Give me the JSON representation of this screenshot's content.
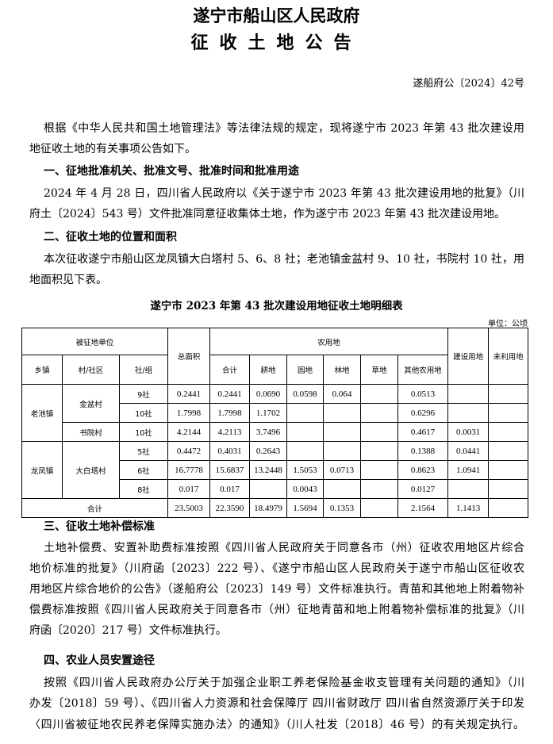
{
  "header": {
    "title1": "遂宁市船山区人民政府",
    "title2": "征收土地公告",
    "doc_no": "遂船府公〔2024〕42号"
  },
  "intro": [
    "根据《中华人民共和国土地管理法》等法律法规的规定，现将遂宁市 2023 年第 43 批次建设用",
    "地征收土地的有关事项公告如下。"
  ],
  "s1": {
    "heading": "一、征地批准机关、批准文号、批准时间和批准用途",
    "lines": [
      "2024 年 4 月 28 日，四川省人民政府以《关于遂宁市 2023 年第 43 批次建设用地的批复》（川",
      "府土〔2024〕543 号）文件批准同意征收集体土地，作为遂宁市 2023 年第 43 批次建设用地。"
    ]
  },
  "s2": {
    "heading": "二、征收土地的位置和面积",
    "lines": [
      "本次征收遂宁市船山区龙凤镇大白塔村 5、6、8 社；老池镇金盆村 9、10 社，书院村 10 社，用",
      "地面积见下表。"
    ]
  },
  "table": {
    "title": "遂宁市 2023 年第 43 批次建设用地征收土地明细表",
    "unit": "单位：公顷",
    "headers": {
      "unit_group": "被征地单位",
      "town": "乡镇",
      "village": "村/社区",
      "group": "社/组",
      "total": "总面积",
      "agri": "农用地",
      "agri_total": "合计",
      "arable": "耕地",
      "garden": "园地",
      "forest": "林地",
      "grass": "草地",
      "other_agri": "其他农用地",
      "construction": "建设用地",
      "unused": "未利用地"
    },
    "towns": [
      "老池镇",
      "龙凤镇"
    ],
    "villages": [
      "金盆村",
      "书院村",
      "大白塔村"
    ],
    "rows": [
      [
        "9社",
        "0.2441",
        "0.2441",
        "0.0690",
        "0.0598",
        "0.064",
        "",
        "0.0513",
        "",
        ""
      ],
      [
        "10社",
        "1.7998",
        "1.7998",
        "1.1702",
        "",
        "",
        "",
        "0.6296",
        "",
        ""
      ],
      [
        "10社",
        "4.2144",
        "4.2113",
        "3.7496",
        "",
        "",
        "",
        "0.4617",
        "0.0031",
        ""
      ],
      [
        "5社",
        "0.4472",
        "0.4031",
        "0.2643",
        "",
        "",
        "",
        "0.1388",
        "0.0441",
        ""
      ],
      [
        "6社",
        "16.7778",
        "15.6837",
        "13.2448",
        "1.5053",
        "0.0713",
        "",
        "0.8623",
        "1.0941",
        ""
      ],
      [
        "8社",
        "0.017",
        "0.017",
        "",
        "0.0043",
        "",
        "",
        "0.0127",
        "",
        ""
      ]
    ],
    "total": {
      "label": "合计",
      "values": [
        "23.5003",
        "22.3590",
        "18.4979",
        "1.5694",
        "0.1353",
        "",
        "2.1564",
        "1.1413",
        ""
      ]
    }
  },
  "s3": {
    "heading": "三、征收土地补偿标准",
    "lines": [
      "土地补偿费、安置补助费标准按照《四川省人民政府关于同意各市（州）征收农用地区片综合",
      "地价标准的批复》（川府函〔2023〕222 号）、《遂宁市船山区人民政府关于遂宁市船山区征收农",
      "用地区片综合地价的公告》（遂船府公〔2023〕149 号）文件标准执行。青苗和其他地上附着物补",
      "偿费标准按照《四川省人民政府关于同意各市（州）征地青苗和地上附着物补偿标准的批复》（川",
      "府函〔2020〕217 号）文件标准执行。"
    ]
  },
  "s4": {
    "heading": "四、农业人员安置途径",
    "lines": [
      "按照《四川省人民政府办公厅关于加强企业职工养老保险基金收支管理有关问题的通知》（川",
      "办发〔2018〕59 号）、《四川省人力资源和社会保障厅 四川省财政厅 四川省自然资源厅关于印发",
      "〈四川省被征地农民养老保障实施办法〉的通知》（川人社发〔2018〕46 号）的有关规定执行。"
    ]
  }
}
